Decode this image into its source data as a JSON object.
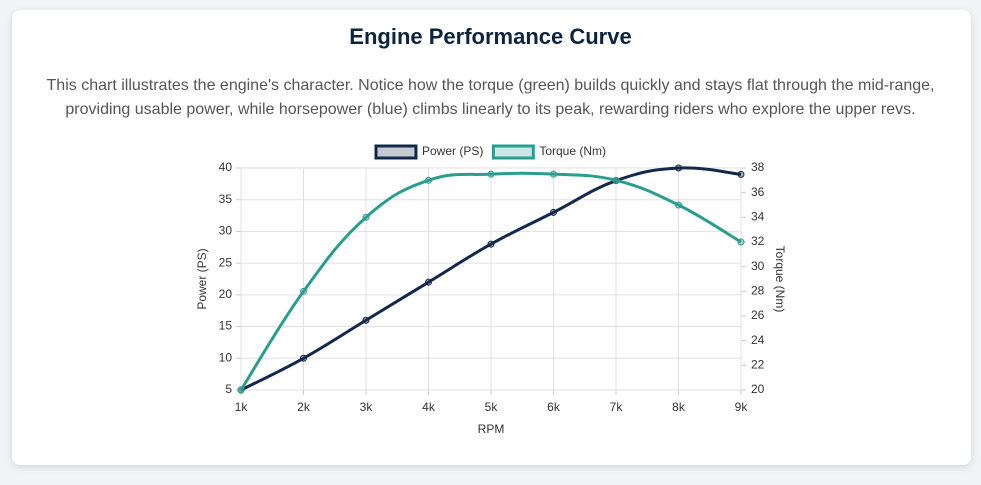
{
  "chart_data": {
    "type": "line",
    "title": "Engine Performance Curve",
    "subtitle": "This chart illustrates the engine's character. Notice how the torque (green) builds quickly and stays flat through the mid-range, providing usable power, while horsepower (blue) climbs linearly to its peak, rewarding riders who explore the upper revs.",
    "xlabel": "RPM",
    "ylabel": "Power (PS)",
    "y2label": "Torque (Nm)",
    "categories": [
      "1k",
      "2k",
      "3k",
      "4k",
      "5k",
      "6k",
      "7k",
      "8k",
      "9k"
    ],
    "series": [
      {
        "name": "Power (PS)",
        "color": "#13294b",
        "values": [
          5,
          10,
          16,
          22,
          28,
          33,
          38,
          40,
          39
        ]
      },
      {
        "name": "Torque (Nm)",
        "color": "#2a9d8f",
        "axis": "y2",
        "values": [
          20,
          28,
          34,
          37,
          37.5,
          37.5,
          37,
          35,
          32
        ]
      }
    ],
    "ylim": [
      5,
      40
    ],
    "yticks": [
      5,
      10,
      15,
      20,
      25,
      30,
      35,
      40
    ],
    "y2lim": [
      20,
      38
    ],
    "y2ticks": [
      20,
      22,
      24,
      26,
      28,
      30,
      32,
      34,
      36,
      38
    ],
    "grid": true,
    "legend": "top"
  }
}
